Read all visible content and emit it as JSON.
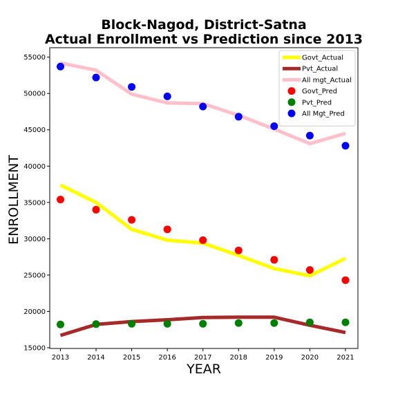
{
  "chart_data": {
    "type": "line",
    "title_lines": [
      "Block-Nagod, District-Satna",
      "Actual Enrollment vs Prediction since 2013"
    ],
    "xlabel": "YEAR",
    "ylabel": "ENROLLMENT",
    "x": [
      2013,
      2014,
      2015,
      2016,
      2017,
      2018,
      2019,
      2020,
      2021
    ],
    "xlim": [
      2012.7,
      2021.35
    ],
    "ylim": [
      14900,
      56300
    ],
    "yticks": [
      15000,
      20000,
      25000,
      30000,
      35000,
      40000,
      45000,
      50000,
      55000
    ],
    "grid": false,
    "legend_position": "upper right",
    "lines": [
      {
        "name": "Govt_Actual",
        "color": "#ffff00",
        "values": [
          37400,
          35000,
          31300,
          29800,
          29400,
          27700,
          25900,
          24900,
          27300
        ]
      },
      {
        "name": "Pvt_Actual",
        "color": "#a52a2a",
        "values": [
          16700,
          18200,
          18600,
          18850,
          19150,
          19200,
          19200,
          18100,
          17100
        ]
      },
      {
        "name": "All mgt_Actual",
        "color": "#ffc0cb",
        "values": [
          54200,
          53200,
          49900,
          48700,
          48600,
          47000,
          45100,
          43100,
          44500
        ]
      }
    ],
    "scatter": [
      {
        "name": "Govt_Pred",
        "color": "#ff0000",
        "values": [
          35400,
          34000,
          32600,
          31300,
          29800,
          28400,
          27100,
          25700,
          24300
        ]
      },
      {
        "name": "Pvt_Pred",
        "color": "#008000",
        "values": [
          18200,
          18250,
          18300,
          18300,
          18300,
          18400,
          18400,
          18500,
          18500
        ]
      },
      {
        "name": "All Mgt_Pred",
        "color": "#0000ff",
        "values": [
          53700,
          52200,
          50900,
          49600,
          48200,
          46800,
          45500,
          44200,
          42800
        ]
      }
    ]
  }
}
